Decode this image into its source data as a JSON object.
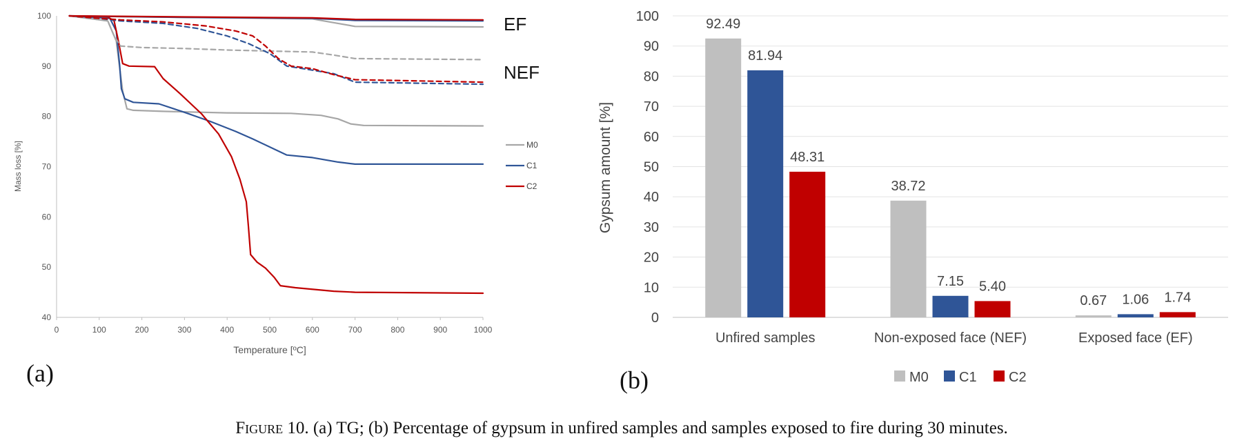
{
  "chart_data": [
    {
      "type": "line",
      "panel_label": "(a)",
      "xlabel": "Temperature [ºC]",
      "ylabel": "Mass loss [%]",
      "xlim": [
        0,
        1000
      ],
      "ylim": [
        40,
        100
      ],
      "xticks": [
        "0",
        "100",
        "200",
        "300",
        "400",
        "500",
        "600",
        "700",
        "800",
        "900",
        "1000"
      ],
      "yticks": [
        "40",
        "50",
        "60",
        "70",
        "80",
        "90",
        "100"
      ],
      "grid": false,
      "legend_position": "right",
      "annotations": [
        "EF",
        "NEF"
      ],
      "series": [
        {
          "name": "M0",
          "color": "#a6a6a6",
          "dash": "solid",
          "points": [
            [
              30,
              100
            ],
            [
              120,
              99
            ],
            [
              140,
              95
            ],
            [
              155,
              85
            ],
            [
              165,
              81.5
            ],
            [
              180,
              81.2
            ],
            [
              250,
              81
            ],
            [
              400,
              80.7
            ],
            [
              550,
              80.6
            ],
            [
              620,
              80.2
            ],
            [
              660,
              79.5
            ],
            [
              690,
              78.5
            ],
            [
              720,
              78.2
            ],
            [
              1000,
              78.1
            ]
          ]
        },
        {
          "name": "C1",
          "color": "#2f5597",
          "dash": "solid",
          "points": [
            [
              30,
              100
            ],
            [
              125,
              99.5
            ],
            [
              140,
              97
            ],
            [
              148,
              90
            ],
            [
              152,
              85.5
            ],
            [
              160,
              83.5
            ],
            [
              180,
              82.8
            ],
            [
              240,
              82.5
            ],
            [
              300,
              80.8
            ],
            [
              360,
              79
            ],
            [
              420,
              77
            ],
            [
              460,
              75.5
            ],
            [
              510,
              73.5
            ],
            [
              540,
              72.3
            ],
            [
              600,
              71.8
            ],
            [
              660,
              70.9
            ],
            [
              700,
              70.5
            ],
            [
              1000,
              70.5
            ]
          ]
        },
        {
          "name": "C2",
          "color": "#c00000",
          "dash": "solid",
          "points": [
            [
              30,
              100
            ],
            [
              120,
              99.8
            ],
            [
              135,
              99
            ],
            [
              145,
              95
            ],
            [
              155,
              90.5
            ],
            [
              170,
              90
            ],
            [
              230,
              89.9
            ],
            [
              250,
              87.5
            ],
            [
              290,
              84.5
            ],
            [
              340,
              80.5
            ],
            [
              380,
              76.5
            ],
            [
              410,
              72
            ],
            [
              430,
              67.5
            ],
            [
              445,
              63
            ],
            [
              450,
              58
            ],
            [
              455,
              52.5
            ],
            [
              470,
              51
            ],
            [
              490,
              49.8
            ],
            [
              510,
              48
            ],
            [
              525,
              46.3
            ],
            [
              560,
              45.9
            ],
            [
              650,
              45.2
            ],
            [
              700,
              45
            ],
            [
              1000,
              44.8
            ]
          ]
        },
        {
          "name": "",
          "color": "#a6a6a6",
          "dash": "solid",
          "points": [
            [
              30,
              100
            ],
            [
              200,
              99.8
            ],
            [
              400,
              99.6
            ],
            [
              600,
              99.4
            ],
            [
              660,
              98.5
            ],
            [
              700,
              97.9
            ],
            [
              1000,
              97.8
            ]
          ]
        },
        {
          "name": "",
          "color": "#2f5597",
          "dash": "solid",
          "points": [
            [
              30,
              100
            ],
            [
              300,
              99.7
            ],
            [
              600,
              99.5
            ],
            [
              700,
              99.1
            ],
            [
              1000,
              99
            ]
          ]
        },
        {
          "name": "",
          "color": "#c00000",
          "dash": "solid",
          "points": [
            [
              30,
              100
            ],
            [
              300,
              99.8
            ],
            [
              600,
              99.6
            ],
            [
              700,
              99.3
            ],
            [
              1000,
              99.2
            ]
          ]
        },
        {
          "name": "",
          "color": "#a6a6a6",
          "dash": "dashed",
          "points": [
            [
              30,
              100
            ],
            [
              120,
              99
            ],
            [
              135,
              96
            ],
            [
              150,
              94
            ],
            [
              200,
              93.7
            ],
            [
              300,
              93.5
            ],
            [
              400,
              93.2
            ],
            [
              500,
              93
            ],
            [
              600,
              92.8
            ],
            [
              650,
              92.2
            ],
            [
              700,
              91.5
            ],
            [
              1000,
              91.3
            ]
          ]
        },
        {
          "name": "",
          "color": "#2f5597",
          "dash": "dashed",
          "points": [
            [
              30,
              100
            ],
            [
              100,
              99.5
            ],
            [
              150,
              99
            ],
            [
              250,
              98.5
            ],
            [
              330,
              97.5
            ],
            [
              400,
              96
            ],
            [
              450,
              94.5
            ],
            [
              500,
              92.5
            ],
            [
              540,
              90
            ],
            [
              600,
              89.2
            ],
            [
              650,
              88.5
            ],
            [
              700,
              86.8
            ],
            [
              1000,
              86.4
            ]
          ]
        },
        {
          "name": "",
          "color": "#c00000",
          "dash": "dashed",
          "points": [
            [
              30,
              100
            ],
            [
              100,
              99.5
            ],
            [
              150,
              99.2
            ],
            [
              250,
              98.8
            ],
            [
              350,
              98
            ],
            [
              420,
              97
            ],
            [
              460,
              96
            ],
            [
              490,
              94
            ],
            [
              520,
              91.5
            ],
            [
              550,
              90
            ],
            [
              600,
              89.5
            ],
            [
              650,
              88.3
            ],
            [
              700,
              87.3
            ],
            [
              1000,
              86.8
            ]
          ]
        }
      ]
    },
    {
      "type": "bar",
      "panel_label": "(b)",
      "ylabel": "Gypsum amount [%]",
      "ylim": [
        0,
        100
      ],
      "yticks": [
        "0",
        "10",
        "20",
        "30",
        "40",
        "50",
        "60",
        "70",
        "80",
        "90",
        "100"
      ],
      "grid": true,
      "legend_position": "bottom",
      "categories": [
        "Unfired samples",
        "Non-exposed face (NEF)",
        "Exposed face (EF)"
      ],
      "series": [
        {
          "name": "M0",
          "color": "#bfbfbf",
          "values": [
            92.49,
            38.72,
            0.67
          ],
          "labels": [
            "92.49",
            "38.72",
            "0.67"
          ]
        },
        {
          "name": "C1",
          "color": "#2f5597",
          "values": [
            81.94,
            7.15,
            1.06
          ],
          "labels": [
            "81.94",
            "7.15",
            "1.06"
          ]
        },
        {
          "name": "C2",
          "color": "#c00000",
          "values": [
            48.31,
            5.4,
            1.74
          ],
          "labels": [
            "48.31",
            "5.40",
            "1.74"
          ]
        }
      ]
    }
  ],
  "caption": {
    "prefix": "Figure 10.",
    "text": " (a) TG; (b) Percentage of gypsum in unfired samples and samples exposed to fire during 30 minutes."
  }
}
